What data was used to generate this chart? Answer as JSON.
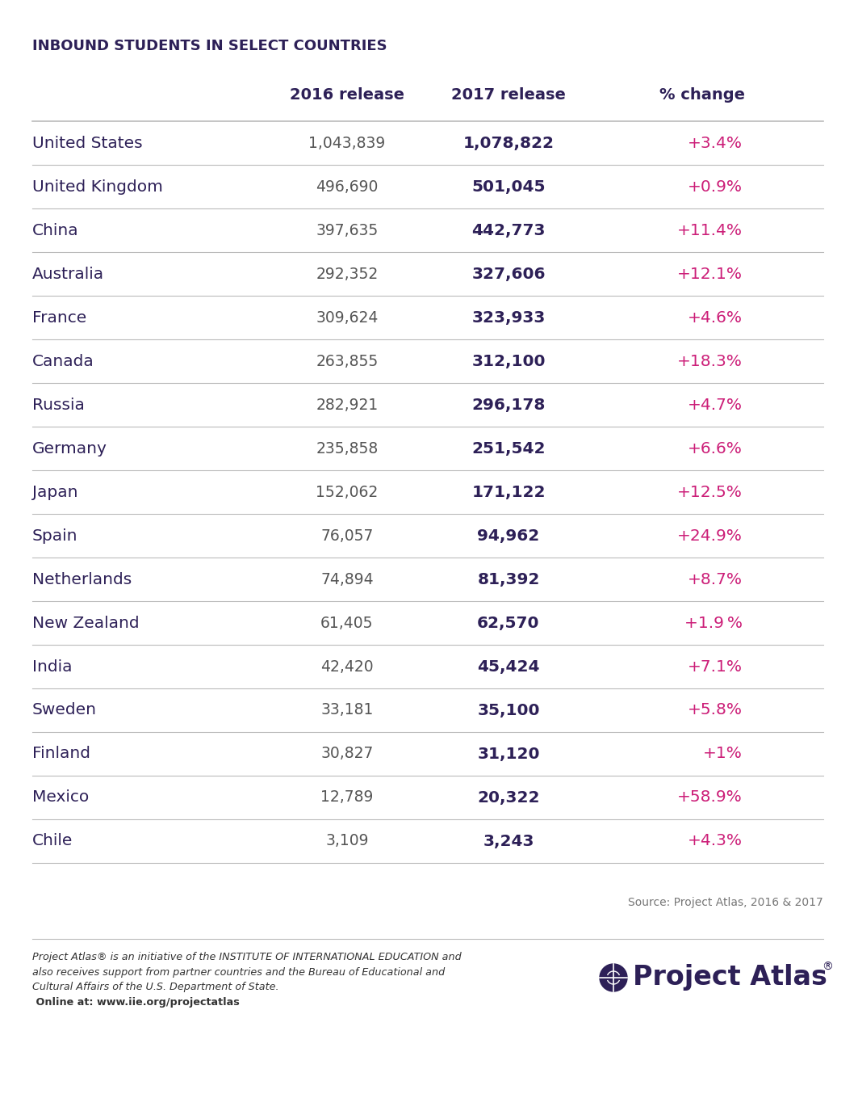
{
  "title": "INBOUND STUDENTS IN SELECT COUNTRIES",
  "col_headers": [
    "2016 release",
    "2017 release",
    "% change"
  ],
  "rows": [
    {
      "country": "United States",
      "val2016": "1,043,839",
      "val2017": "1,078,822",
      "change": "+3.4%"
    },
    {
      "country": "United Kingdom",
      "val2016": "496,690",
      "val2017": "501,045",
      "change": "+0.9%"
    },
    {
      "country": "China",
      "val2016": "397,635",
      "val2017": "442,773",
      "change": "+11.4%"
    },
    {
      "country": "Australia",
      "val2016": "292,352",
      "val2017": "327,606",
      "change": "+12.1%"
    },
    {
      "country": "France",
      "val2016": "309,624",
      "val2017": "323,933",
      "change": "+4.6%"
    },
    {
      "country": "Canada",
      "val2016": "263,855",
      "val2017": "312,100",
      "change": "+18.3%"
    },
    {
      "country": "Russia",
      "val2016": "282,921",
      "val2017": "296,178",
      "change": "+4.7%"
    },
    {
      "country": "Germany",
      "val2016": "235,858",
      "val2017": "251,542",
      "change": "+6.6%"
    },
    {
      "country": "Japan",
      "val2016": "152,062",
      "val2017": "171,122",
      "change": "+12.5%"
    },
    {
      "country": "Spain",
      "val2016": "76,057",
      "val2017": "94,962",
      "change": "+24.9%"
    },
    {
      "country": "Netherlands",
      "val2016": "74,894",
      "val2017": "81,392",
      "change": "+8.7%"
    },
    {
      "country": "New Zealand",
      "val2016": "61,405",
      "val2017": "62,570",
      "change": "+1.9 %"
    },
    {
      "country": "India",
      "val2016": "42,420",
      "val2017": "45,424",
      "change": "+7.1%"
    },
    {
      "country": "Sweden",
      "val2016": "33,181",
      "val2017": "35,100",
      "change": "+5.8%"
    },
    {
      "country": "Finland",
      "val2016": "30,827",
      "val2017": "31,120",
      "change": "+1%"
    },
    {
      "country": "Mexico",
      "val2016": "12,789",
      "val2017": "20,322",
      "change": "+58.9%"
    },
    {
      "country": "Chile",
      "val2016": "3,109",
      "val2017": "3,243",
      "change": "+4.3%"
    }
  ],
  "source_text": "Source: Project Atlas, 2016 & 2017",
  "footer_italic": "Project Atlas® is an initiative of the INSTITUTE OF INTERNATIONAL EDUCATION and\nalso receives support from partner countries and the Bureau of Educational and\nCultural Affairs of the U.S. Department of State.",
  "footer_bold": " Online at: www.iie.org/projectatlas",
  "bg_color": "#ffffff",
  "title_color": "#2d2057",
  "header_color": "#2d2057",
  "country_color": "#2d2057",
  "val2016_color": "#555555",
  "val2017_color": "#2d2057",
  "change_color": "#cc1e78",
  "line_color": "#bbbbbb",
  "brand_color": "#2d2057",
  "source_color": "#777777",
  "footer_text_color": "#333333"
}
